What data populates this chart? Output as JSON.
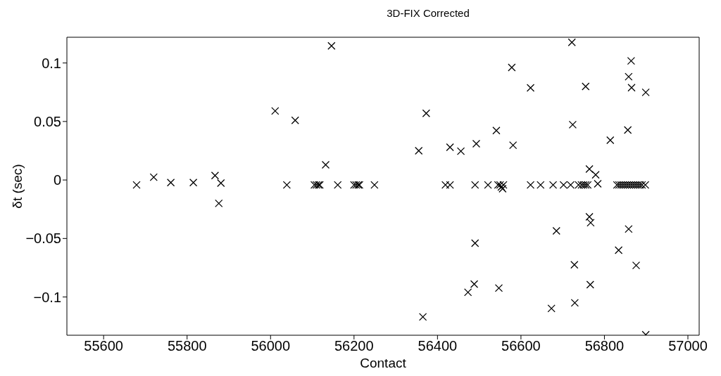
{
  "chart_data": {
    "type": "scatter",
    "title": "3D-FIX Corrected",
    "xlabel": "Contact",
    "ylabel": "δt (sec)",
    "xlim": [
      55512,
      57027
    ],
    "xticks": [
      55600,
      55800,
      56000,
      56200,
      56400,
      56600,
      56800,
      57000
    ],
    "ylim": [
      -0.1327,
      0.122
    ],
    "yticks": [
      -0.1,
      -0.05,
      0,
      0.05,
      0.1
    ],
    "grid": false,
    "legend": false,
    "marker": "cross",
    "series": [
      {
        "color": "#000000",
        "x": [
          55679,
          55720,
          55761,
          55815,
          55867,
          55881,
          55876,
          56011,
          56039,
          56059,
          56105,
          56110,
          56115,
          56118,
          56132,
          56146,
          56161,
          56200,
          56205,
          56210,
          56213,
          56249,
          56355,
          56373,
          56365,
          56419,
          56430,
          56430,
          56456,
          56493,
          56490,
          56490,
          56488,
          56473,
          56521,
          56541,
          56547,
          56545,
          56550,
          56553,
          56556,
          56558,
          56578,
          56581,
          56623,
          56623,
          56647,
          56677,
          56685,
          56673,
          56702,
          56719,
          56722,
          56724,
          56728,
          56729,
          56738,
          56745,
          56750,
          56755,
          56760,
          56755,
          56764,
          56779,
          56784,
          56764,
          56767,
          56766,
          56814,
          56834,
          56830,
          56835,
          56840,
          56845,
          56850,
          56855,
          56860,
          56865,
          56870,
          56875,
          56880,
          56885,
          56890,
          56898,
          56856,
          56858,
          56858,
          56864,
          56865,
          56876,
          56899,
          56899
        ],
        "values": [
          -0.0042,
          0.0024,
          -0.0022,
          -0.0022,
          0.0038,
          -0.0026,
          -0.02,
          0.059,
          -0.0042,
          0.051,
          -0.0042,
          -0.0042,
          -0.0042,
          -0.0042,
          0.013,
          0.1146,
          -0.0042,
          -0.0042,
          -0.0042,
          -0.0042,
          -0.0042,
          -0.0042,
          0.025,
          0.057,
          -0.117,
          -0.0042,
          -0.0042,
          0.028,
          0.0246,
          0.031,
          -0.0042,
          -0.054,
          -0.089,
          -0.096,
          -0.0042,
          0.0423,
          -0.0924,
          -0.0042,
          -0.0042,
          -0.006,
          -0.0075,
          -0.0042,
          0.0962,
          0.0297,
          0.0787,
          -0.0042,
          -0.0042,
          -0.0042,
          -0.0435,
          -0.1098,
          -0.0042,
          -0.0042,
          0.1176,
          0.0473,
          -0.0725,
          -0.105,
          -0.0042,
          -0.0042,
          -0.0042,
          -0.0042,
          -0.0042,
          0.0799,
          0.0094,
          0.0044,
          -0.0032,
          -0.0315,
          -0.0365,
          -0.0894,
          0.034,
          -0.06,
          -0.0042,
          -0.0042,
          -0.0042,
          -0.0042,
          -0.0042,
          -0.0042,
          -0.0042,
          -0.0042,
          -0.0042,
          -0.0042,
          -0.0042,
          -0.0042,
          -0.0042,
          -0.0042,
          0.0427,
          -0.0419,
          0.0883,
          0.1018,
          0.0789,
          -0.073,
          0.0749,
          -0.1323
        ]
      }
    ]
  }
}
